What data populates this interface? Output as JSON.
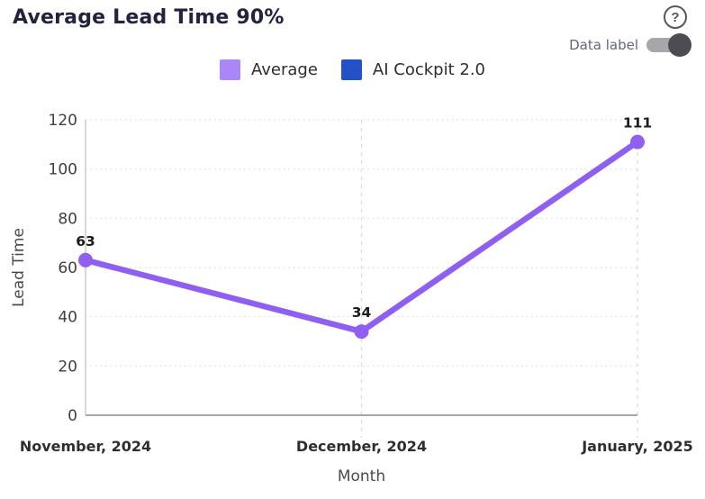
{
  "header": {
    "title": "Average Lead Time 90%",
    "help_icon": "circled-question-mark",
    "help_glyph": "?",
    "data_label_toggle": {
      "label": "Data label",
      "state": "on"
    }
  },
  "legend": {
    "items": [
      {
        "label": "Average",
        "color": "#a987f9"
      },
      {
        "label": "AI Cockpit 2.0",
        "color": "#2451c5"
      }
    ]
  },
  "chart_data": {
    "type": "line",
    "title": "Average Lead Time 90%",
    "categories": [
      "November, 2024",
      "December, 2024",
      "January, 2025"
    ],
    "series": [
      {
        "name": "Average",
        "values": [
          63,
          34,
          111
        ],
        "color": "#8f5ff2",
        "visible": true
      },
      {
        "name": "AI Cockpit 2.0",
        "values": [],
        "color": "#2451c5",
        "visible": false
      }
    ],
    "data_labels": [
      "63",
      "34",
      "111"
    ],
    "data_labels_visible": true,
    "xlabel": "Month",
    "ylabel": "Lead Time",
    "ylim": [
      0,
      120
    ],
    "ytick_step": 20,
    "yticks": [
      0,
      20,
      40,
      60,
      80,
      100,
      120
    ],
    "grid": true,
    "legend_position": "top",
    "colors": {
      "grid_line": "#d9d9d9",
      "y_axis_line": "#cccccc",
      "x_axis_line": "#a6a6a6",
      "tick_text": "#3f3f3f",
      "category_text": "#2e2e2e",
      "axis_title_text": "#4a4a4a",
      "data_label_text": "#1c1c1c"
    }
  }
}
